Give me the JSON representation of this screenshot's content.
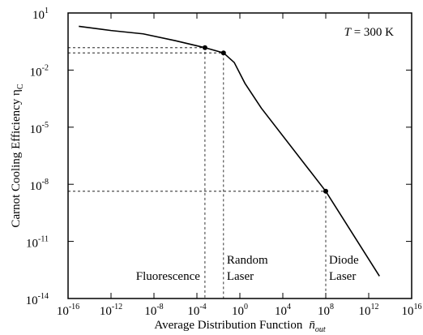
{
  "chart_data": {
    "type": "line",
    "log_x": true,
    "log_y": true,
    "xlabel": "Average Distribution Function",
    "xlabel_symbol": "n̄",
    "xlabel_sub": "out",
    "ylabel": "Carnot Cooling Efficiency η",
    "ylabel_sub": "C",
    "xlim": [
      1e-16,
      1e+16
    ],
    "xticks": [
      {
        "value": 1e-16,
        "label": "10",
        "exponent": "-16"
      },
      {
        "value": 1e-12,
        "label": "10",
        "exponent": "-12"
      },
      {
        "value": 1e-08,
        "label": "10",
        "exponent": "-8"
      },
      {
        "value": 0.0001,
        "label": "10",
        "exponent": "-4"
      },
      {
        "value": 1,
        "label": "10",
        "exponent": "0"
      },
      {
        "value": 10000.0,
        "label": "10",
        "exponent": "4"
      },
      {
        "value": 100000000.0,
        "label": "10",
        "exponent": "8"
      },
      {
        "value": 1000000000000.0,
        "label": "10",
        "exponent": "12"
      },
      {
        "value": 1e+16,
        "label": "10",
        "exponent": "16"
      }
    ],
    "ylim": [
      1e-14,
      10
    ],
    "yticks": [
      {
        "value": 10,
        "label": "10",
        "exponent": "1"
      },
      {
        "value": 0.01,
        "label": "10",
        "exponent": "-2"
      },
      {
        "value": 1e-05,
        "label": "10",
        "exponent": "-5"
      },
      {
        "value": 1e-08,
        "label": "10",
        "exponent": "-8"
      },
      {
        "value": 1e-11,
        "label": "10",
        "exponent": "-11"
      },
      {
        "value": 1e-14,
        "label": "10",
        "exponent": "-14"
      }
    ],
    "series": [
      {
        "color": "#000000",
        "x": [
          1e-15,
          1e-12,
          1e-09,
          1e-06,
          0.00056,
          0.03,
          0.3,
          3,
          100,
          100000000.0,
          10000000000000.0
        ],
        "y": [
          2,
          1.2,
          0.8,
          0.35,
          0.15,
          0.08,
          0.025,
          0.002,
          0.0001,
          4.3e-09,
          1.5e-13
        ]
      }
    ],
    "points": {
      "x": [
        0.00056,
        0.03,
        100000000.0
      ],
      "y": [
        0.15,
        0.08,
        4.3e-09
      ]
    },
    "annotation_var": "T",
    "annotation_rest": " = 300 K",
    "regions": [
      [
        "Fluorescence"
      ],
      [
        "Random",
        "Laser"
      ],
      [
        "Diode",
        "Laser"
      ]
    ]
  }
}
